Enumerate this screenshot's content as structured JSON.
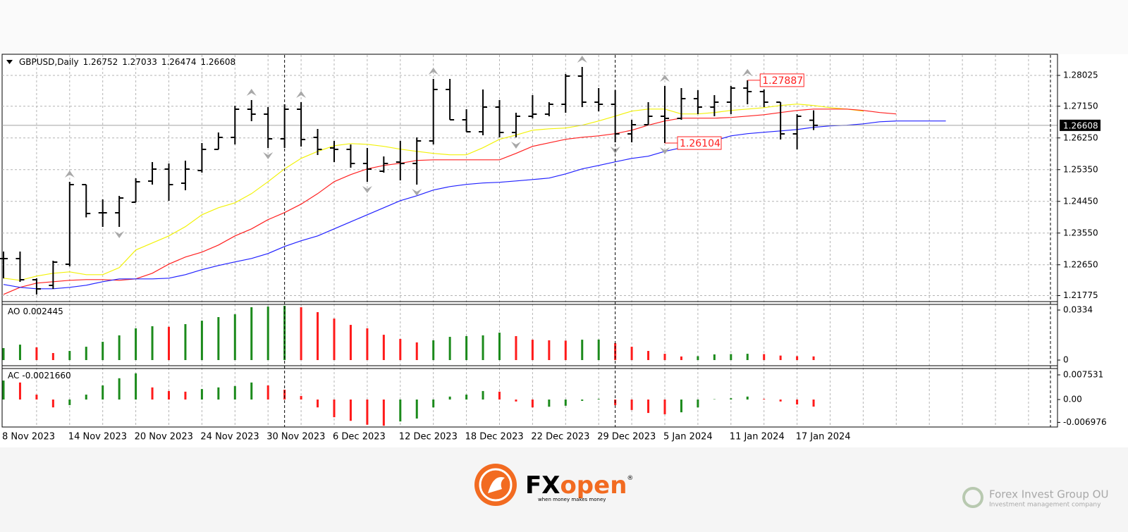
{
  "chart_data": [
    {
      "type": "ohlc",
      "symbol": "GBPUSD,Daily",
      "categories": [
        "8 Nov 2023",
        null,
        null,
        null,
        "14 Nov 2023",
        null,
        null,
        null,
        "20 Nov 2023",
        null,
        null,
        null,
        "24 Nov 2023",
        null,
        null,
        null,
        "30 Nov 2023",
        null,
        null,
        null,
        "6 Dec 2023",
        null,
        null,
        null,
        "12 Dec 2023",
        null,
        null,
        null,
        "18 Dec 2023",
        null,
        null,
        null,
        "22 Dec 2023",
        null,
        null,
        null,
        "29 Dec 2023",
        null,
        null,
        null,
        "5 Jan 2024",
        null,
        null,
        null,
        "11 Jan 2024",
        null,
        null,
        null,
        "17 Jan 2024",
        null,
        null,
        null,
        null,
        null,
        null,
        null,
        null,
        null
      ],
      "open": [
        1.22825,
        1.22825,
        1.22225,
        1.22065,
        1.22665,
        1.24925,
        1.24125,
        1.24125,
        1.24425,
        1.25025,
        1.25365,
        1.24965,
        1.25325,
        1.25925,
        1.26265,
        1.27065,
        1.26925,
        1.26225,
        1.27065,
        1.26265,
        1.25965,
        1.25925,
        1.25525,
        1.25305,
        1.25565,
        1.25525,
        1.26165,
        1.27625,
        1.26765,
        1.26425,
        1.27125,
        1.26405,
        1.26865,
        1.26925,
        1.27205,
        1.28005,
        1.27265,
        1.27205,
        1.26365,
        1.26625,
        1.26865,
        1.26805,
        1.27365,
        1.27125,
        1.27265,
        1.27665,
        1.27565,
        1.27265,
        1.26365,
        1.26752,
        null,
        null,
        null,
        null,
        null,
        null,
        null,
        null
      ],
      "high": [
        1.23025,
        1.23025,
        1.22265,
        1.22765,
        1.25005,
        1.24925,
        1.24505,
        1.24605,
        1.25105,
        1.25565,
        1.25525,
        1.25605,
        1.26105,
        1.26405,
        1.27165,
        1.27325,
        1.27125,
        1.27205,
        1.27265,
        1.26505,
        1.26165,
        1.26065,
        1.25965,
        1.25725,
        1.26165,
        1.26265,
        1.27925,
        1.27925,
        1.27065,
        1.27625,
        1.27325,
        1.26965,
        1.27465,
        1.27265,
        1.28065,
        1.28265,
        1.27665,
        1.27605,
        1.26765,
        1.27265,
        1.27725,
        1.27665,
        1.27605,
        1.27465,
        1.27725,
        1.27887,
        1.27625,
        1.27265,
        1.26925,
        1.27033,
        null,
        null,
        null,
        null,
        null,
        null,
        null,
        null
      ],
      "low": [
        1.22265,
        1.22165,
        1.21805,
        1.21965,
        1.22605,
        1.23995,
        1.23725,
        1.23725,
        1.24425,
        1.24925,
        1.24465,
        1.24765,
        1.25265,
        1.25925,
        1.26065,
        1.26725,
        1.25965,
        1.25965,
        1.26005,
        1.25765,
        1.25565,
        1.25405,
        1.25005,
        1.25265,
        1.25045,
        1.24925,
        1.26065,
        1.26765,
        1.26425,
        1.26325,
        1.26265,
        1.26265,
        1.26805,
        1.26865,
        1.26965,
        1.27125,
        1.27005,
        1.26125,
        1.26125,
        1.26625,
        1.26104,
        1.26765,
        1.26925,
        1.26865,
        1.26925,
        1.27205,
        1.27125,
        1.26205,
        1.25925,
        1.26474,
        null,
        null,
        null,
        null,
        null,
        null,
        null,
        null
      ],
      "close": [
        1.22825,
        1.22225,
        1.21965,
        1.22725,
        1.24925,
        1.24105,
        1.24125,
        1.24545,
        1.25005,
        1.25365,
        1.24925,
        1.25365,
        1.25925,
        1.26265,
        1.27065,
        1.26925,
        1.26225,
        1.27065,
        1.26205,
        1.25925,
        1.25925,
        1.25525,
        1.25365,
        1.25525,
        1.25525,
        1.26165,
        1.27625,
        1.26765,
        1.26425,
        1.27125,
        1.26405,
        1.26865,
        1.26925,
        1.27205,
        1.28005,
        1.27265,
        1.27205,
        1.26365,
        1.26625,
        1.26865,
        1.26805,
        1.27365,
        1.27125,
        1.27265,
        1.27665,
        1.27565,
        1.27265,
        1.26365,
        1.26865,
        1.26608,
        null,
        null,
        null,
        null,
        null,
        null,
        null,
        null
      ],
      "series": [
        {
          "color": "#f2f20a",
          "values": [
            1.2227,
            1.2221,
            1.2233,
            1.2241,
            1.2245,
            1.2237,
            1.2237,
            1.2257,
            1.2307,
            1.2327,
            1.2347,
            1.2373,
            1.2407,
            1.2427,
            1.2441,
            1.2467,
            1.2501,
            1.2537,
            1.2567,
            1.2587,
            1.2603,
            1.2609,
            1.2607,
            1.2601,
            1.2593,
            1.2587,
            1.2581,
            1.2577,
            1.2577,
            1.2597,
            1.2621,
            1.2633,
            1.2647,
            1.2651,
            1.2653,
            1.2661,
            1.2673,
            1.2687,
            1.2701,
            1.2707,
            1.2707,
            1.2693,
            1.2693,
            1.2697,
            1.2703,
            1.2707,
            1.2711,
            1.2717,
            1.2721,
            1.2717,
            1.2711,
            1.2707,
            1.2701,
            null,
            null,
            null,
            null,
            null
          ]
        },
        {
          "color": "#ff2020",
          "values": [
            1.2181,
            1.2201,
            1.2213,
            1.2217,
            1.2221,
            1.2223,
            1.2223,
            1.2221,
            1.2225,
            1.2241,
            1.2267,
            1.2287,
            1.2301,
            1.2321,
            1.2347,
            1.2367,
            1.2393,
            1.2413,
            1.2437,
            1.2467,
            1.2501,
            1.2521,
            1.2537,
            1.2547,
            1.2553,
            1.2561,
            1.2563,
            1.2563,
            1.2563,
            1.2563,
            1.2563,
            1.2581,
            1.2601,
            1.2611,
            1.2621,
            1.2627,
            1.2631,
            1.2637,
            1.2647,
            1.2661,
            1.2673,
            1.2681,
            1.2681,
            1.2681,
            1.2683,
            1.2687,
            1.2691,
            1.2697,
            1.2703,
            1.2707,
            1.2707,
            1.2707,
            1.2703,
            1.2697,
            1.2693,
            null,
            null,
            null
          ]
        },
        {
          "color": "#2020ff",
          "values": [
            1.2209,
            1.2201,
            1.2197,
            1.2197,
            1.2201,
            1.2207,
            1.2217,
            1.2225,
            1.2225,
            1.2225,
            1.2227,
            1.2237,
            1.2251,
            1.2263,
            1.2273,
            1.2283,
            1.2297,
            1.2317,
            1.2333,
            1.2347,
            1.2367,
            1.2387,
            1.2407,
            1.2427,
            1.2447,
            1.2461,
            1.2477,
            1.2487,
            1.2493,
            1.2497,
            1.2499,
            1.2503,
            1.2507,
            1.2511,
            1.2523,
            1.2537,
            1.2547,
            1.2557,
            1.2567,
            1.2573,
            1.2587,
            1.2597,
            1.2607,
            1.2617,
            1.2631,
            1.2637,
            1.2641,
            1.2645,
            1.2649,
            1.2655,
            1.2659,
            1.2661,
            1.2665,
            1.2671,
            1.2673,
            1.2673,
            1.2673,
            1.2673
          ]
        }
      ],
      "fractals_up": [
        4,
        15,
        18,
        26,
        35,
        40,
        45
      ],
      "fractals_down": [
        7,
        16,
        22,
        25,
        31,
        37,
        40
      ],
      "ylim": [
        1.21605,
        1.28605
      ],
      "yticks": [
        1.28025,
        {
          "value": 1.2715,
          "label": "1.27150"
        },
        {
          "value": 1.2625,
          "label": "1.26250"
        },
        {
          "value": 1.2535,
          "label": "1.25350"
        },
        {
          "value": 1.2445,
          "label": "1.24450"
        },
        {
          "value": 1.2355,
          "label": "1.23550"
        },
        {
          "value": 1.2265,
          "label": "1.22650"
        },
        1.21775
      ],
      "grid": true
    },
    {
      "type": "histogram",
      "name": "AO",
      "values": [
        0.008,
        0.0103,
        0.0085,
        0.0047,
        0.0061,
        0.0089,
        0.0122,
        0.0165,
        0.0212,
        0.0226,
        0.0222,
        0.024,
        0.0263,
        0.0287,
        0.0306,
        0.0353,
        0.0357,
        0.0362,
        0.0353,
        0.032,
        0.0277,
        0.0235,
        0.0212,
        0.0169,
        0.0141,
        0.0118,
        0.0132,
        0.0155,
        0.016,
        0.0165,
        0.0183,
        0.016,
        0.0136,
        0.0132,
        0.013,
        0.0136,
        0.0137,
        0.0113,
        0.0089,
        0.0061,
        0.0042,
        0.0024,
        0.0026,
        0.0038,
        0.004,
        0.0042,
        0.004,
        0.003,
        0.0026,
        0.002445
      ],
      "up_color": "#1b8a1b",
      "down_color": "#ff1a1a",
      "ylim": [
        -0.00376,
        0.03716
      ],
      "yticks": [
        0.0334,
        0
      ]
    },
    {
      "type": "histogram",
      "name": "AC",
      "value_label": "-0.0021660",
      "values": [
        0.0058,
        0.0052,
        0.0015,
        -0.0024,
        -0.0017,
        0.0015,
        0.0043,
        0.0065,
        0.008,
        0.0037,
        0.0026,
        0.0024,
        0.0032,
        0.0037,
        0.0041,
        0.0052,
        0.0043,
        0.003,
        0.0011,
        -0.0024,
        -0.0054,
        -0.0065,
        -0.0077,
        -0.008,
        -0.0067,
        -0.0058,
        -0.0024,
        0.0009,
        0.0015,
        0.0026,
        0.0024,
        -0.0006,
        -0.0024,
        -0.0022,
        -0.0019,
        -0.0004,
        0.0002,
        -0.0017,
        -0.0032,
        -0.0041,
        -0.0045,
        -0.0039,
        -0.0024,
        0.0001,
        0.0004,
        0.0009,
        0.0002,
        -0.0006,
        -0.0015,
        -0.002166
      ],
      "up_color": "#1b8a1b",
      "down_color": "#ff1a1a",
      "ylim": [
        -0.00839,
        0.00947
      ],
      "yticks": [
        0.007531,
        {
          "value": 0,
          "label": "0.00"
        },
        -0.006976
      ]
    }
  ],
  "footer": {
    "brand_prefix": "FX",
    "brand_suffix": "open",
    "registered": "®",
    "tagline": "when money makes money",
    "partner": "Forex Invest Group OU",
    "partner_tagline": "Investment management company"
  }
}
